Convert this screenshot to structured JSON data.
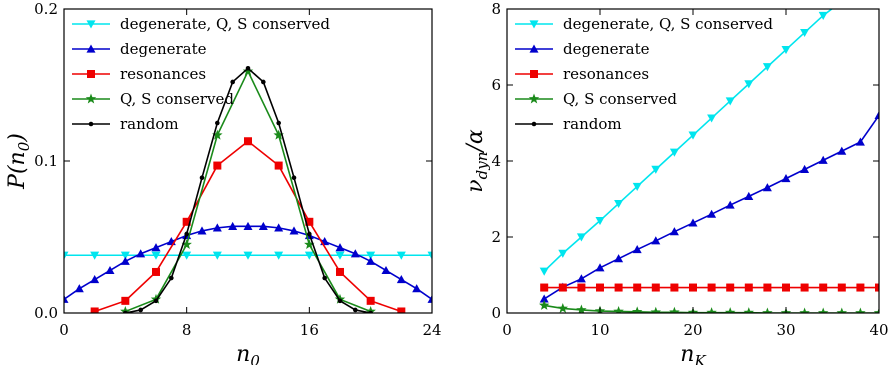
{
  "chart_data": [
    {
      "type": "line",
      "xlabel": "n",
      "xlabel_sub": "0",
      "ylabel": "P(n",
      "ylabel_sub": "0",
      "ylabel_tail": ")",
      "xlim": [
        0,
        24
      ],
      "ylim": [
        0,
        0.2
      ],
      "xticks": [
        0,
        8,
        16,
        24
      ],
      "yticks": [
        0.0,
        0.1,
        0.2
      ],
      "ytick_labels": [
        "0.0",
        "0.1",
        "0.2"
      ],
      "legend_position": "top-left",
      "series": [
        {
          "name": "degenerate, Q, S conserved",
          "color": "#00e5ee",
          "marker": "triangle-down",
          "x": [
            0,
            2,
            4,
            6,
            8,
            10,
            12,
            14,
            16,
            18,
            20,
            22,
            24
          ],
          "y": [
            0.038,
            0.038,
            0.038,
            0.038,
            0.038,
            0.038,
            0.038,
            0.038,
            0.038,
            0.038,
            0.038,
            0.038,
            0.038
          ]
        },
        {
          "name": "degenerate",
          "color": "#0000cc",
          "marker": "triangle-up",
          "x": [
            0,
            1,
            2,
            3,
            4,
            5,
            6,
            7,
            8,
            9,
            10,
            11,
            12,
            13,
            14,
            15,
            16,
            17,
            18,
            19,
            20,
            21,
            22,
            23,
            24
          ],
          "y": [
            0.009,
            0.016,
            0.022,
            0.028,
            0.034,
            0.039,
            0.043,
            0.047,
            0.051,
            0.054,
            0.056,
            0.057,
            0.057,
            0.057,
            0.056,
            0.054,
            0.051,
            0.047,
            0.043,
            0.039,
            0.034,
            0.028,
            0.022,
            0.016,
            0.009
          ]
        },
        {
          "name": "resonances",
          "color": "#ee0000",
          "marker": "square",
          "x": [
            2,
            4,
            6,
            8,
            10,
            12,
            14,
            16,
            18,
            20,
            22
          ],
          "y": [
            0.001,
            0.008,
            0.027,
            0.06,
            0.097,
            0.113,
            0.097,
            0.06,
            0.027,
            0.008,
            0.001
          ]
        },
        {
          "name": "Q, S conserved",
          "color": "#1a8a1a",
          "marker": "star",
          "x": [
            4,
            6,
            8,
            10,
            12,
            14,
            16,
            18,
            20
          ],
          "y": [
            0.001,
            0.009,
            0.045,
            0.117,
            0.159,
            0.117,
            0.045,
            0.009,
            0.001
          ]
        },
        {
          "name": "random",
          "color": "#000000",
          "marker": "dot",
          "x": [
            4,
            5,
            6,
            7,
            8,
            9,
            10,
            11,
            12,
            13,
            14,
            15,
            16,
            17,
            18,
            19,
            20
          ],
          "y": [
            0.0,
            0.002,
            0.008,
            0.023,
            0.052,
            0.089,
            0.125,
            0.152,
            0.161,
            0.152,
            0.125,
            0.089,
            0.052,
            0.023,
            0.008,
            0.002,
            0.0
          ]
        }
      ]
    },
    {
      "type": "line",
      "xlabel": "n",
      "xlabel_sub": "K",
      "ylabel": "ν",
      "ylabel_sub": "dyn",
      "ylabel_tail": "/α",
      "xlim": [
        0,
        40
      ],
      "ylim": [
        0,
        8
      ],
      "xticks": [
        0,
        10,
        20,
        30,
        40
      ],
      "yticks": [
        0,
        2,
        4,
        6,
        8
      ],
      "ytick_labels": [
        "0",
        "2",
        "4",
        "6",
        "8"
      ],
      "legend_position": "top-left",
      "series": [
        {
          "name": "degenerate, Q, S conserved",
          "color": "#00e5ee",
          "marker": "triangle-down",
          "x": [
            4,
            6,
            8,
            10,
            12,
            14,
            16,
            18,
            20,
            22,
            24,
            26,
            28,
            30,
            32,
            34,
            36
          ],
          "y": [
            1.1,
            1.57,
            2.0,
            2.43,
            2.88,
            3.33,
            3.78,
            4.23,
            4.68,
            5.13,
            5.58,
            6.03,
            6.48,
            6.93,
            7.38,
            7.83,
            8.2
          ]
        },
        {
          "name": "degenerate",
          "color": "#0000cc",
          "marker": "triangle-up",
          "x": [
            4,
            6,
            8,
            10,
            12,
            14,
            16,
            18,
            20,
            22,
            24,
            26,
            28,
            30,
            32,
            34,
            36,
            38,
            40
          ],
          "y": [
            0.37,
            0.68,
            0.9,
            1.19,
            1.43,
            1.67,
            1.9,
            2.14,
            2.37,
            2.6,
            2.84,
            3.07,
            3.3,
            3.54,
            3.78,
            4.02,
            4.26,
            4.5,
            5.2
          ]
        },
        {
          "name": "resonances",
          "color": "#ee0000",
          "marker": "square",
          "x": [
            4,
            6,
            8,
            10,
            12,
            14,
            16,
            18,
            20,
            22,
            24,
            26,
            28,
            30,
            32,
            34,
            36,
            38,
            40
          ],
          "y": [
            0.67,
            0.67,
            0.67,
            0.67,
            0.67,
            0.67,
            0.67,
            0.67,
            0.67,
            0.67,
            0.67,
            0.67,
            0.67,
            0.67,
            0.67,
            0.67,
            0.67,
            0.67,
            0.67
          ]
        },
        {
          "name": "Q, S conserved",
          "color": "#1a8a1a",
          "marker": "star",
          "x": [
            4,
            6,
            8,
            10,
            12,
            14,
            16,
            18,
            20,
            22,
            24,
            26,
            28,
            30,
            32,
            34,
            36,
            38,
            40
          ],
          "y": [
            0.2,
            0.12,
            0.08,
            0.05,
            0.04,
            0.03,
            0.02,
            0.02,
            0.01,
            0.01,
            0.01,
            0.01,
            0.0,
            0.0,
            0.0,
            0.0,
            0.0,
            0.0,
            0.0
          ]
        },
        {
          "name": "random",
          "color": "#000000",
          "marker": "dot",
          "x": [],
          "y": []
        }
      ]
    }
  ]
}
